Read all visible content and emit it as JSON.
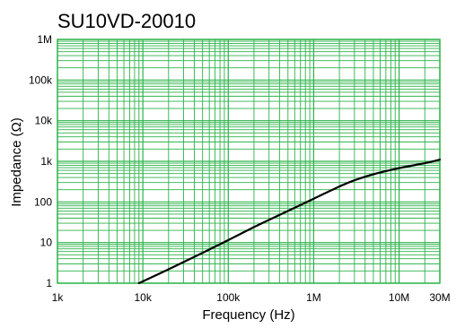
{
  "chart_data": {
    "type": "line",
    "title": "SU10VD-20010",
    "xlabel": "Frequency (Hz)",
    "ylabel": "Impedance (Ω)",
    "xscale": "log",
    "yscale": "log",
    "xlim": [
      1000,
      30000000
    ],
    "ylim": [
      1,
      1000000
    ],
    "grid": true,
    "grid_color": "#2db34a",
    "line_color": "#000000",
    "x_ticks": [
      {
        "value": 1000,
        "label": "1k"
      },
      {
        "value": 10000,
        "label": "10k"
      },
      {
        "value": 100000,
        "label": "100k"
      },
      {
        "value": 1000000,
        "label": "1M"
      },
      {
        "value": 10000000,
        "label": "10M"
      },
      {
        "value": 30000000,
        "label": "30M"
      }
    ],
    "y_ticks": [
      {
        "value": 1,
        "label": "1"
      },
      {
        "value": 10,
        "label": "10"
      },
      {
        "value": 100,
        "label": "100"
      },
      {
        "value": 1000,
        "label": "1k"
      },
      {
        "value": 10000,
        "label": "10k"
      },
      {
        "value": 100000,
        "label": "100k"
      },
      {
        "value": 1000000,
        "label": "1M"
      }
    ],
    "series": [
      {
        "x": [
          9000,
          20000,
          50000,
          100000,
          200000,
          500000,
          1000000,
          2000000,
          3000000,
          5000000,
          10000000,
          20000000,
          30000000
        ],
        "y": [
          1,
          2.2,
          5.6,
          11.5,
          24,
          60,
          120,
          240,
          340,
          480,
          680,
          900,
          1100
        ]
      }
    ]
  }
}
